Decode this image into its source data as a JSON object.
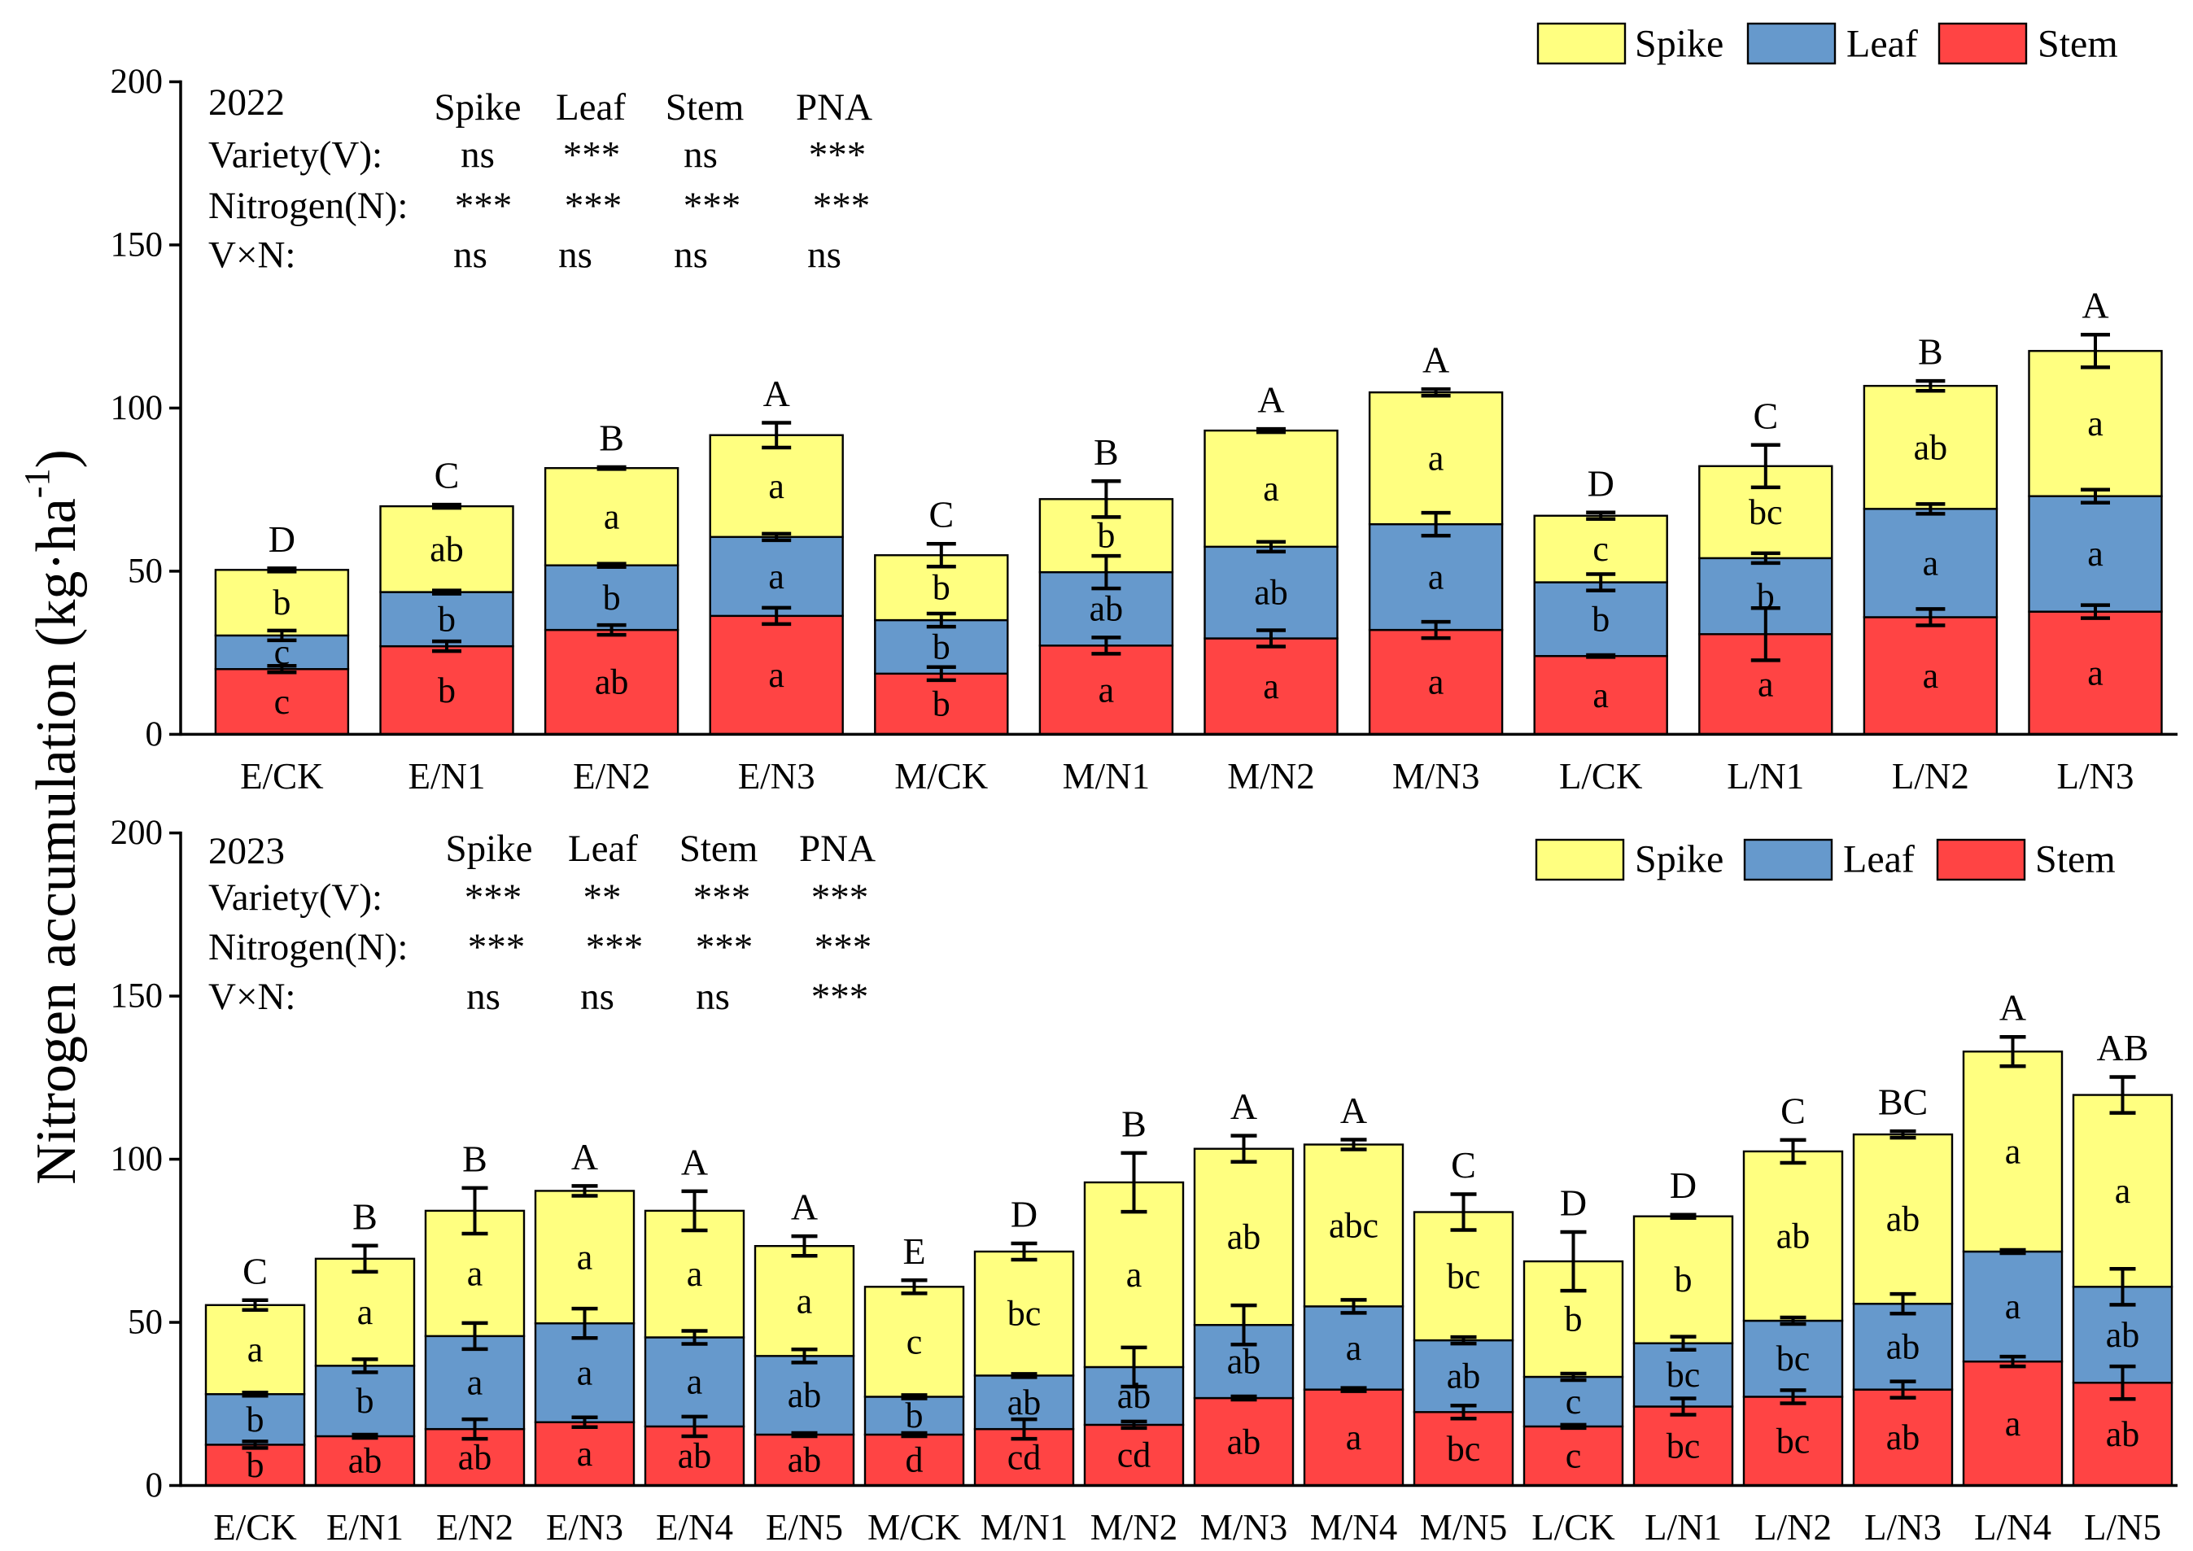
{
  "shared_ylabel": {
    "main": "Nitrogen accumulation (kg·ha",
    "sup": "-1",
    "end": ")"
  },
  "colors": {
    "spike": "#FFFF80",
    "leaf": "#6699CC",
    "stem": "#FF4444",
    "outline": "#000000"
  },
  "chart_data": [
    {
      "type": "bar",
      "stacked": true,
      "title": "2022",
      "ylim": [
        0,
        200
      ],
      "yticks": [
        0,
        50,
        100,
        150,
        200
      ],
      "grid": false,
      "legend_position": "top-right",
      "categories": [
        "E/CK",
        "E/N1",
        "E/N2",
        "E/N3",
        "M/CK",
        "M/N1",
        "M/N2",
        "M/N3",
        "L/CK",
        "L/N1",
        "L/N2",
        "L/N3"
      ],
      "series": [
        {
          "name": "Stem",
          "values": [
            20.0,
            27.0,
            32.0,
            36.3,
            18.6,
            27.2,
            29.4,
            32.0,
            24.0,
            30.7,
            35.9,
            37.6
          ],
          "errors": [
            1.0,
            1.5,
            1.5,
            2.5,
            2.0,
            2.5,
            2.5,
            2.5,
            0.3,
            8.0,
            2.5,
            2.0
          ],
          "letters": [
            "c",
            "b",
            "ab",
            "a",
            "b",
            "a",
            "a",
            "a",
            "a",
            "a",
            "a",
            "a"
          ]
        },
        {
          "name": "Leaf",
          "values": [
            10.3,
            16.6,
            19.8,
            24.2,
            16.4,
            22.5,
            28.1,
            32.4,
            22.6,
            23.3,
            33.2,
            35.4
          ],
          "errors": [
            1.5,
            0.5,
            0.5,
            1.0,
            2.0,
            5.0,
            1.5,
            3.5,
            2.5,
            1.5,
            1.5,
            2.0
          ],
          "letters": [
            "c",
            "b",
            "b",
            "a",
            "b",
            "ab",
            "ab",
            "a",
            "b",
            "b",
            "a",
            "a"
          ]
        },
        {
          "name": "Spike",
          "values": [
            20.1,
            26.3,
            29.8,
            31.2,
            19.9,
            22.4,
            35.6,
            40.4,
            20.4,
            28.2,
            37.7,
            44.5
          ],
          "errors": [
            0.5,
            0.5,
            0.3,
            3.8,
            3.5,
            5.5,
            0.5,
            1.0,
            1.0,
            6.5,
            1.5,
            5.0
          ],
          "letters": [
            "b",
            "ab",
            "a",
            "a",
            "b",
            "b",
            "a",
            "a",
            "c",
            "bc",
            "ab",
            "a"
          ]
        }
      ],
      "total_letters": [
        "D",
        "C",
        "B",
        "A",
        "C",
        "B",
        "A",
        "A",
        "D",
        "C",
        "B",
        "A"
      ],
      "stats_table": {
        "headers": [
          "Spike",
          "Leaf",
          "Stem",
          "PNA"
        ],
        "rows": [
          {
            "label": "Variety(V):",
            "values": [
              "ns",
              "***",
              "ns",
              "***"
            ]
          },
          {
            "label": "Nitrogen(N):",
            "values": [
              "***",
              "***",
              "***",
              "***"
            ]
          },
          {
            "label": "V×N:",
            "values": [
              "ns",
              "ns",
              "ns",
              "ns"
            ]
          }
        ]
      }
    },
    {
      "type": "bar",
      "stacked": true,
      "title": "2023",
      "ylim": [
        0,
        200
      ],
      "yticks": [
        0,
        50,
        100,
        150,
        200
      ],
      "grid": false,
      "legend_position": "top-right",
      "categories": [
        "E/CK",
        "E/N1",
        "E/N2",
        "E/N3",
        "E/N4",
        "E/N5",
        "M/CK",
        "M/N1",
        "M/N2",
        "M/N3",
        "M/N4",
        "M/N5",
        "L/CK",
        "L/N1",
        "L/N2",
        "L/N3",
        "L/N4",
        "L/N5"
      ],
      "series": [
        {
          "name": "Stem",
          "values": [
            12.5,
            15.1,
            17.3,
            19.4,
            18.1,
            15.6,
            15.6,
            17.3,
            18.6,
            26.8,
            29.4,
            22.5,
            18.1,
            24.2,
            27.2,
            29.4,
            38.0,
            31.5
          ],
          "errors": [
            1.0,
            0.5,
            3.0,
            1.5,
            3.0,
            0.5,
            0.5,
            3.0,
            1.0,
            0.5,
            0.5,
            2.0,
            0.5,
            2.5,
            2.0,
            2.5,
            1.5,
            5.0
          ],
          "letters": [
            "b",
            "ab",
            "ab",
            "a",
            "ab",
            "ab",
            "d",
            "cd",
            "cd",
            "ab",
            "a",
            "bc",
            "c",
            "bc",
            "bc",
            "ab",
            "a",
            "ab"
          ]
        },
        {
          "name": "Leaf",
          "values": [
            15.5,
            21.6,
            28.5,
            30.3,
            27.3,
            24.1,
            11.6,
            16.4,
            17.7,
            22.4,
            25.5,
            22.0,
            15.2,
            19.4,
            23.3,
            26.3,
            33.7,
            29.4
          ],
          "errors": [
            0.5,
            2.0,
            4.0,
            4.5,
            2.0,
            2.0,
            0.5,
            0.5,
            6.0,
            6.0,
            2.0,
            1.0,
            1.0,
            2.0,
            1.0,
            3.0,
            0.5,
            5.5
          ],
          "letters": [
            "b",
            "b",
            "a",
            "a",
            "a",
            "ab",
            "b",
            "ab",
            "ab",
            "ab",
            "a",
            "ab",
            "c",
            "bc",
            "bc",
            "ab",
            "a",
            "ab"
          ]
        },
        {
          "name": "Spike",
          "values": [
            27.3,
            32.8,
            38.4,
            40.6,
            38.8,
            33.7,
            33.7,
            38.0,
            56.6,
            54.0,
            49.6,
            39.3,
            35.4,
            38.9,
            51.9,
            51.9,
            61.3,
            58.8
          ],
          "errors": [
            1.5,
            4.0,
            7.0,
            1.5,
            6.0,
            3.0,
            2.0,
            2.5,
            9.0,
            4.0,
            1.5,
            5.5,
            9.0,
            0.5,
            3.5,
            1.0,
            4.5,
            5.5
          ],
          "letters": [
            "a",
            "a",
            "a",
            "a",
            "a",
            "a",
            "c",
            "bc",
            "a",
            "ab",
            "abc",
            "bc",
            "b",
            "b",
            "ab",
            "ab",
            "a",
            "a"
          ]
        }
      ],
      "total_letters": [
        "C",
        "B",
        "B",
        "A",
        "A",
        "A",
        "E",
        "D",
        "B",
        "A",
        "A",
        "C",
        "D",
        "D",
        "C",
        "BC",
        "A",
        "AB"
      ],
      "stats_table": {
        "headers": [
          "Spike",
          "Leaf",
          "Stem",
          "PNA"
        ],
        "rows": [
          {
            "label": "Variety(V):",
            "values": [
              "***",
              "**",
              "***",
              "***"
            ]
          },
          {
            "label": "Nitrogen(N):",
            "values": [
              "***",
              "***",
              "***",
              "***"
            ]
          },
          {
            "label": "V×N:",
            "values": [
              "ns",
              "ns",
              "ns",
              "***"
            ]
          }
        ]
      }
    }
  ]
}
